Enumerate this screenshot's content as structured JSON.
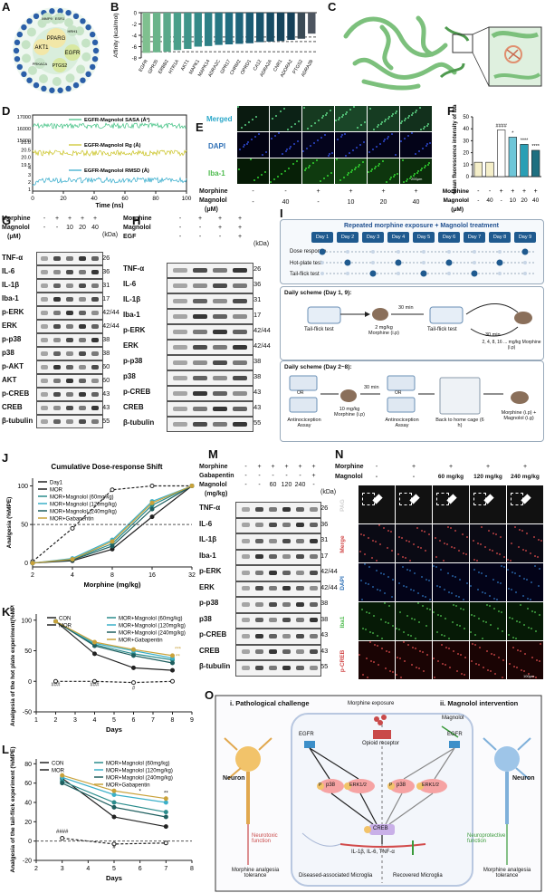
{
  "panel_labels": {
    "A": "A",
    "B": "B",
    "C": "C",
    "D": "D",
    "E": "E",
    "F": "F",
    "G": "G",
    "H": "H",
    "I": "I",
    "J": "J",
    "K": "K",
    "L": "L",
    "M": "M",
    "N": "N",
    "O": "O"
  },
  "panelA": {
    "nodes": [
      "PPARG",
      "AKT1",
      "EGFR",
      "PTGS2",
      "MMP9",
      "ESR1",
      "HRH1",
      "PRKACA"
    ]
  },
  "panelB": {
    "chart_data": {
      "type": "bar",
      "ylabel": "Affinity (kcal/mol)",
      "ylim": [
        -8,
        0
      ],
      "categories": [
        "EGFR",
        "GPR35",
        "ERBB2",
        "HTR1A",
        "AKT1",
        "MAPK1",
        "MAPK14",
        "ADRA2C",
        "GPR17",
        "CHRM2",
        "OPRD1",
        "CA12",
        "ADRA2A",
        "CNR1",
        "ADORA2",
        "PTGS2",
        "ADRA2B"
      ],
      "values": [
        -7.1,
        -7.0,
        -6.9,
        -6.6,
        -6.4,
        -6.0,
        -5.9,
        -5.7,
        -5.6,
        -5.5,
        -5.4,
        -5.2,
        -5.1,
        -5.0,
        -4.8,
        -4.6,
        -3.7
      ],
      "ticks": [
        "0",
        "-2",
        "-4",
        "-6",
        "-8"
      ]
    }
  },
  "panelD": {
    "chart_data": {
      "type": "line",
      "xlabel": "Time (ns)",
      "xticks": [
        "0",
        "20",
        "40",
        "60",
        "80",
        "100"
      ],
      "series": [
        {
          "name": "EGFR-Magnolol SASA (Å²)",
          "color": "#3bbf7f",
          "ticks": [
            "17000",
            "16000",
            "15000"
          ]
        },
        {
          "name": "EGFR-Magnolol Rg (Å)",
          "color": "#c9c21f",
          "ticks": [
            "21.0",
            "20.5",
            "20.0",
            "19.5"
          ]
        },
        {
          "name": "EGFR-Magnolol RMSD (Å)",
          "color": "#2aa7c9",
          "ticks": [
            "4",
            "3",
            "2",
            "1"
          ]
        }
      ]
    }
  },
  "panelE": {
    "rows": [
      "Merged",
      "DAPI",
      "Iba-1"
    ],
    "morphine_label": "Morphine",
    "magnolol_label": "Magnolol",
    "magnolol_unit": "(μM)",
    "morphine": [
      "-",
      "-",
      "+",
      "+",
      "+",
      "+"
    ],
    "magnolol": [
      "-",
      "40",
      "-",
      "10",
      "20",
      "40"
    ],
    "scale": "200μm"
  },
  "panelF": {
    "chart_data": {
      "type": "bar",
      "ylabel": "Mean fluorescence intensity of Iba-1",
      "ylim": [
        0,
        50
      ],
      "ticks": [
        "50",
        "40",
        "30",
        "20",
        "10",
        "0"
      ],
      "values": [
        12,
        12,
        39,
        33,
        27,
        22
      ],
      "sig": [
        "",
        "",
        "####",
        "*",
        "****",
        "****"
      ],
      "morphine": [
        "-",
        "-",
        "+",
        "+",
        "+",
        "+"
      ],
      "magnolol": [
        "-",
        "40",
        "-",
        "10",
        "20",
        "40"
      ],
      "morphine_label": "Morphine",
      "magnolol_label": "Magnolol",
      "unit": "(μM)"
    }
  },
  "panelG": {
    "morphine": [
      "-",
      "+",
      "+",
      "+",
      "+"
    ],
    "magnolol": [
      "-",
      "-",
      "10",
      "20",
      "40"
    ],
    "morphine_label": "Morphine",
    "magnolol_label": "Magnolol",
    "unit": "(μM)",
    "kda_header": "(kDa)",
    "rows": [
      [
        "TNF-α",
        "26"
      ],
      [
        "IL-6",
        "36"
      ],
      [
        "IL-1β",
        "31"
      ],
      [
        "Iba-1",
        "17"
      ],
      [
        "p-ERK",
        "42/44"
      ],
      [
        "ERK",
        "42/44"
      ],
      [
        "p-p38",
        "38"
      ],
      [
        "p38",
        "38"
      ],
      [
        "p-AKT",
        "60"
      ],
      [
        "AKT",
        "60"
      ],
      [
        "p-CREB",
        "43"
      ],
      [
        "CREB",
        "43"
      ],
      [
        "β-tubulin",
        "55"
      ]
    ]
  },
  "panelH": {
    "morphine": [
      "-",
      "+",
      "+",
      "+"
    ],
    "magnolol": [
      "-",
      "-",
      "+",
      "+"
    ],
    "egf": [
      "-",
      "-",
      "-",
      "+"
    ],
    "morphine_label": "Morphine",
    "magnolol_label": "Magnolol",
    "egf_label": "EGF",
    "kda_header": "(kDa)",
    "rows": [
      [
        "TNF-α",
        "26"
      ],
      [
        "IL-6",
        "36"
      ],
      [
        "IL-1β",
        "31"
      ],
      [
        "Iba-1",
        "17"
      ],
      [
        "p-ERK",
        "42/44"
      ],
      [
        "ERK",
        "42/44"
      ],
      [
        "p-p38",
        "38"
      ],
      [
        "p38",
        "38"
      ],
      [
        "p-CREB",
        "43"
      ],
      [
        "CREB",
        "43"
      ],
      [
        "β-tubulin",
        "55"
      ]
    ]
  },
  "panelI": {
    "title": "Repeated morphine exposure + Magnolol treatment",
    "days": [
      "Day 1",
      "Day 2",
      "Day 3",
      "Day 4",
      "Day 5",
      "Day 6",
      "Day 7",
      "Day 8",
      "Day 9"
    ],
    "tests": [
      "Dose response",
      "Hot-plate test",
      "Tail-flick test"
    ],
    "scheme1": "Daily scheme (Day 1, 9):",
    "scheme1_steps": [
      "Tail-flick test",
      "2 mg/kg Morphine (i.p)",
      "30 min",
      "Tail-flick test",
      "30 min",
      "2, 4, 8, 16 ... mg/kg Morphine (i.p)"
    ],
    "scheme2": "Daily scheme (Day 2~8):",
    "scheme2_steps": [
      "Antinociception Assay",
      "10 mg/kg Morphine (i.p)",
      "30 min",
      "Antinociception Assay",
      "Back to home cage (6 h)",
      "Morphine (i.p) + Magnolol (i.g)"
    ],
    "or": "OR"
  },
  "panelJ": {
    "chart_data": {
      "type": "line",
      "title": "Cumulative Dose-response Shift",
      "xlabel": "Morphine (mg/kg)",
      "ylabel": "Analgesia (%MPE)",
      "xticks": [
        "2",
        "4",
        "8",
        "16",
        "32"
      ],
      "yticks": [
        "0",
        "50",
        "100"
      ],
      "series": [
        {
          "name": "Day1",
          "color": "#222222",
          "x": [
            2,
            4,
            8,
            16,
            32
          ],
          "y": [
            2,
            45,
            95,
            100,
            100
          ]
        },
        {
          "name": "MOR",
          "color": "#222222",
          "x": [
            2,
            4,
            8,
            16,
            32
          ],
          "y": [
            0,
            3,
            18,
            60,
            100
          ]
        },
        {
          "name": "MOR+Magnolol (60mg/kg)",
          "color": "#2a8c8c",
          "x": [
            2,
            4,
            8,
            16,
            32
          ],
          "y": [
            0,
            5,
            25,
            75,
            100
          ]
        },
        {
          "name": "MOR+Magnolol (120mg/kg)",
          "color": "#3bb0c9",
          "x": [
            2,
            4,
            8,
            16,
            32
          ],
          "y": [
            0,
            6,
            30,
            80,
            100
          ]
        },
        {
          "name": "MOR+Magnolol (240mg/kg)",
          "color": "#1f5f5f",
          "x": [
            2,
            4,
            8,
            16,
            32
          ],
          "y": [
            0,
            4,
            22,
            70,
            100
          ]
        },
        {
          "name": "MOR+Gabapentin",
          "color": "#c9a23b",
          "x": [
            2,
            4,
            8,
            16,
            32
          ],
          "y": [
            0,
            5,
            28,
            78,
            100
          ]
        }
      ]
    }
  },
  "panelK": {
    "chart_data": {
      "type": "line",
      "xlabel": "Days",
      "ylabel": "Analgesia of the hot plate experiment(%MPE)",
      "xticks": [
        "1",
        "2",
        "3",
        "4",
        "5",
        "6",
        "7",
        "8",
        "9"
      ],
      "yticks": [
        "-50",
        "0",
        "50",
        "100"
      ],
      "series": [
        {
          "name": "CON",
          "color": "#222222",
          "x": [
            2,
            4,
            6,
            8
          ],
          "y": [
            0,
            0,
            -2,
            0
          ]
        },
        {
          "name": "MOR",
          "color": "#222222",
          "x": [
            2,
            4,
            6,
            8
          ],
          "y": [
            98,
            45,
            22,
            18
          ]
        },
        {
          "name": "MOR+Magnolol (60mg/kg)",
          "color": "#2a8c8c",
          "x": [
            2,
            4,
            6,
            8
          ],
          "y": [
            98,
            60,
            45,
            35
          ]
        },
        {
          "name": "MOR+Magnolol (120mg/kg)",
          "color": "#3bb0c9",
          "x": [
            2,
            4,
            6,
            8
          ],
          "y": [
            98,
            62,
            50,
            38
          ]
        },
        {
          "name": "MOR+Magnolol (240mg/kg)",
          "color": "#1f5f5f",
          "x": [
            2,
            4,
            6,
            8
          ],
          "y": [
            98,
            58,
            42,
            30
          ]
        },
        {
          "name": "MOR+Gabapentin",
          "color": "#c9a23b",
          "x": [
            2,
            4,
            6,
            8
          ],
          "y": [
            98,
            64,
            52,
            42
          ]
        }
      ],
      "annotations": [
        "###",
        "###",
        "#",
        "***",
        "**"
      ]
    }
  },
  "panelL": {
    "chart_data": {
      "type": "line",
      "xlabel": "Days",
      "ylabel": "Analgesia of the tail-flick experiment (%MPE)",
      "xticks": [
        "2",
        "3",
        "4",
        "5",
        "6",
        "7",
        "8"
      ],
      "yticks": [
        "-20",
        "0",
        "20",
        "40",
        "60",
        "80"
      ],
      "series": [
        {
          "name": "CON",
          "color": "#222222",
          "x": [
            3,
            5,
            7
          ],
          "y": [
            3,
            -3,
            -2
          ]
        },
        {
          "name": "MOR",
          "color": "#222222",
          "x": [
            3,
            5,
            7
          ],
          "y": [
            65,
            25,
            15
          ]
        },
        {
          "name": "MOR+Magnolol (60mg/kg)",
          "color": "#2a8c8c",
          "x": [
            3,
            5,
            7
          ],
          "y": [
            62,
            40,
            30
          ]
        },
        {
          "name": "MOR+Magnolol (120mg/kg)",
          "color": "#3bb0c9",
          "x": [
            3,
            5,
            7
          ],
          "y": [
            66,
            48,
            40
          ]
        },
        {
          "name": "MOR+Magnolol (240mg/kg)",
          "color": "#1f5f5f",
          "x": [
            3,
            5,
            7
          ],
          "y": [
            60,
            35,
            25
          ]
        },
        {
          "name": "MOR+Gabapentin",
          "color": "#c9a23b",
          "x": [
            3,
            5,
            7
          ],
          "y": [
            68,
            52,
            44
          ]
        }
      ],
      "annotations": [
        "####",
        "#",
        "*",
        "**"
      ]
    }
  },
  "panelM": {
    "morphine": [
      "-",
      "+",
      "+",
      "+",
      "+",
      "+"
    ],
    "gabapentin": [
      "-",
      "-",
      "-",
      "-",
      "-",
      "+"
    ],
    "magnolol": [
      "-",
      "-",
      "60",
      "120",
      "240",
      "-"
    ],
    "morphine_label": "Morphine",
    "gabapentin_label": "Gabapentin",
    "magnolol_label": "Magnolol",
    "unit": "(mg/kg)",
    "kda_header": "(kDa)",
    "rows": [
      [
        "TNF-α",
        "26"
      ],
      [
        "IL-6",
        "36"
      ],
      [
        "IL-1β",
        "31"
      ],
      [
        "Iba-1",
        "17"
      ],
      [
        "p-ERK",
        "42/44"
      ],
      [
        "ERK",
        "42/44"
      ],
      [
        "p-p38",
        "38"
      ],
      [
        "p38",
        "38"
      ],
      [
        "p-CREB",
        "43"
      ],
      [
        "CREB",
        "43"
      ],
      [
        "β-tubulin",
        "55"
      ]
    ]
  },
  "panelN": {
    "morphine": [
      "-",
      "+",
      "+",
      "+",
      "+"
    ],
    "magnolol": [
      "-",
      "-",
      "60 mg/kg",
      "120 mg/kg",
      "240 mg/kg"
    ],
    "morphine_label": "Morphine",
    "magnolol_label": "Magnolol",
    "rows": [
      "PAG",
      "Merge",
      "DAPI",
      "Iba1",
      "p-CREB"
    ],
    "scale": "100μm"
  },
  "panelO": {
    "left_title": "i.  Pathological challenge",
    "right_title": "ii.  Magnolol intervention",
    "morphine_exposure": "Morphine exposure",
    "opioid_receptor": "Opioid receptor",
    "magnolol": "Magnolol",
    "egfr": "EGFR",
    "p38": "p38",
    "erk": "ERK1/2",
    "creb": "CREB",
    "cytokines": "IL-1β,  IL-6,  TNF-α",
    "p": "P",
    "neuron": "Neuron",
    "neurotoxic": "Neurotoxic function",
    "neuroprotective": "Neuroprotective function",
    "tolerance": "Morphine analgesia tolerance",
    "dam": "Diseased-associated Microglia",
    "recovered": "Recovered Microglia"
  },
  "colors": {
    "teal": "#2a8c8c",
    "lightteal": "#3bb0c9",
    "darkteal": "#1f5f5f",
    "gold": "#c9a23b",
    "green": "#6bb36b",
    "blue": "#2d6fb5"
  }
}
